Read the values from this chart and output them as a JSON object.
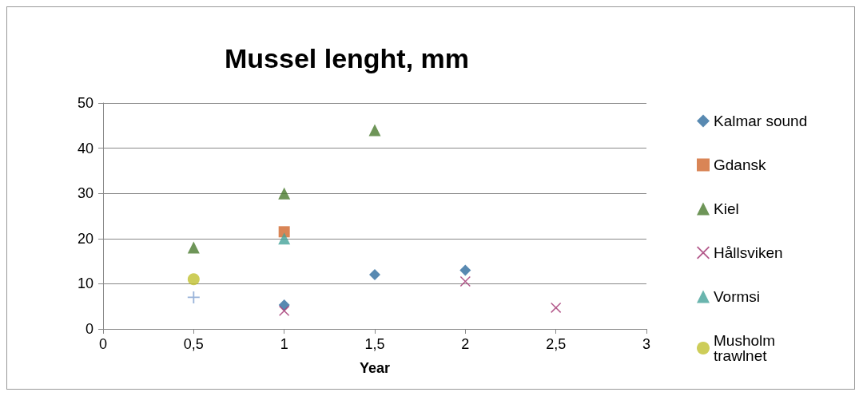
{
  "chart_data": {
    "type": "scatter",
    "title": "Mussel lenght, mm",
    "xlabel": "Year",
    "xlim": [
      0,
      3
    ],
    "xticks": [
      0,
      {
        "value": 0.5,
        "label": "0,5"
      },
      1,
      {
        "value": 1.5,
        "label": "1,5"
      },
      2,
      {
        "value": 2.5,
        "label": "2,5"
      },
      3
    ],
    "ylim": [
      0,
      50
    ],
    "yticks": [
      0,
      10,
      20,
      30,
      40,
      50
    ],
    "grid": "y",
    "legend": "right",
    "series": [
      {
        "name": "Kalmar sound",
        "color": "#2e6b9e",
        "marker": "diamond",
        "x": [
          1,
          1.5,
          2
        ],
        "values": [
          5.3,
          12,
          13
        ]
      },
      {
        "name": "Gdansk",
        "color": "#d0662c",
        "marker": "square",
        "x": [
          1
        ],
        "values": [
          21.5
        ]
      },
      {
        "name": "Kiel",
        "color": "#4a7a2e",
        "marker": "triangle",
        "x": [
          0.5,
          1,
          1.5
        ],
        "values": [
          18,
          30,
          44
        ]
      },
      {
        "name": "Hållsviken",
        "color": "#a0306e",
        "marker": "x",
        "x": [
          1,
          2,
          2.5
        ],
        "values": [
          4,
          10.5,
          4.7
        ]
      },
      {
        "name": "Vormsi",
        "color": "#45a39a",
        "marker": "triangle",
        "x": [
          1
        ],
        "values": [
          20
        ]
      },
      {
        "name": "Musholm trawlnet",
        "color": "#c0c030",
        "marker": "circle",
        "x": [
          0.5
        ],
        "values": [
          11
        ]
      },
      {
        "color": "#7fa0d0",
        "marker": "cross",
        "x": [
          0.5
        ],
        "values": [
          7
        ]
      }
    ]
  }
}
